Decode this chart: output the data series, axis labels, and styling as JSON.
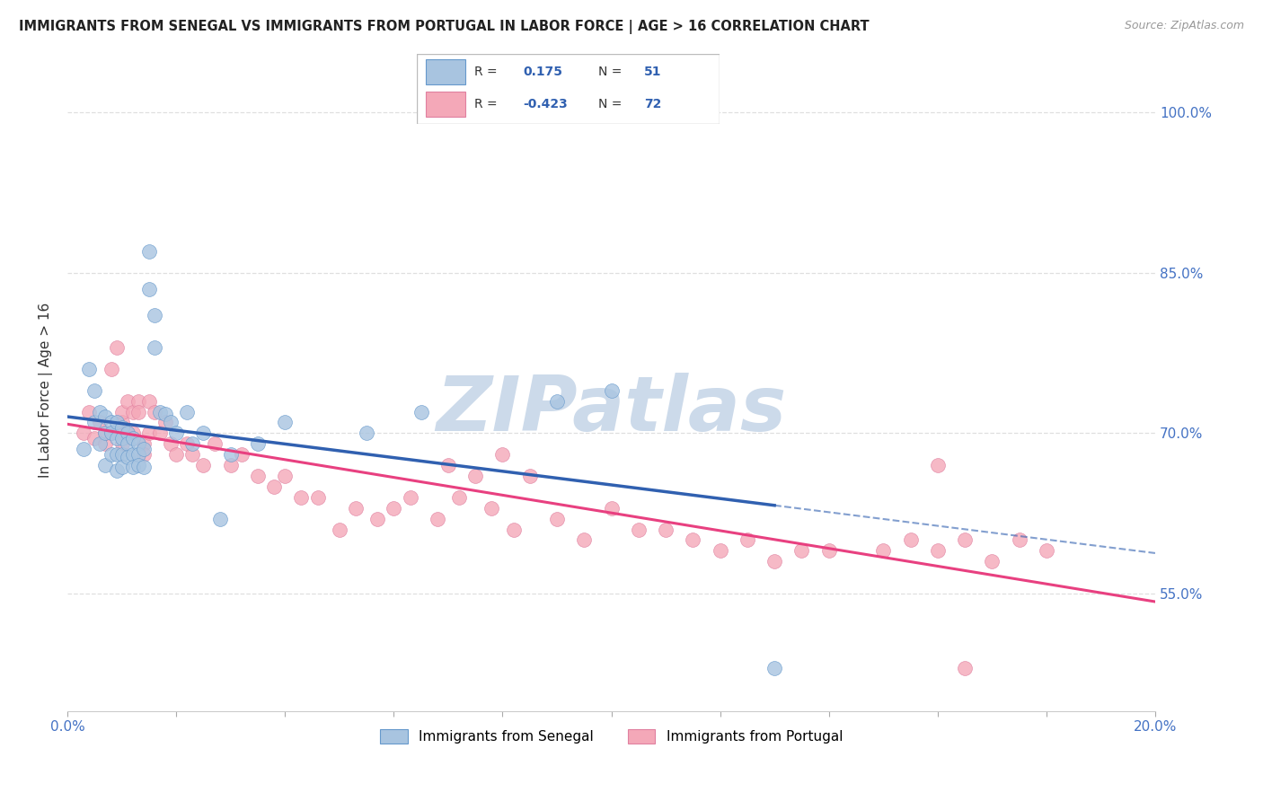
{
  "title": "IMMIGRANTS FROM SENEGAL VS IMMIGRANTS FROM PORTUGAL IN LABOR FORCE | AGE > 16 CORRELATION CHART",
  "source": "Source: ZipAtlas.com",
  "ylabel": "In Labor Force | Age > 16",
  "xlim": [
    0.0,
    0.2
  ],
  "ylim": [
    0.44,
    1.04
  ],
  "ytick_labels": [
    "55.0%",
    "70.0%",
    "85.0%",
    "100.0%"
  ],
  "ytick_values": [
    0.55,
    0.7,
    0.85,
    1.0
  ],
  "xtick_values": [
    0.0,
    0.02,
    0.04,
    0.06,
    0.08,
    0.1,
    0.12,
    0.14,
    0.16,
    0.18,
    0.2
  ],
  "legend_label1": "Immigrants from Senegal",
  "legend_label2": "Immigrants from Portugal",
  "R1": "0.175",
  "N1": "51",
  "R2": "-0.423",
  "N2": "72",
  "senegal_color": "#a8c4e0",
  "portugal_color": "#f4a8b8",
  "senegal_edge_color": "#6699cc",
  "portugal_edge_color": "#e080a0",
  "senegal_line_color": "#3060b0",
  "portugal_line_color": "#e84080",
  "senegal_x": [
    0.003,
    0.004,
    0.005,
    0.005,
    0.006,
    0.006,
    0.007,
    0.007,
    0.007,
    0.008,
    0.008,
    0.008,
    0.009,
    0.009,
    0.009,
    0.009,
    0.01,
    0.01,
    0.01,
    0.01,
    0.011,
    0.011,
    0.011,
    0.012,
    0.012,
    0.012,
    0.013,
    0.013,
    0.013,
    0.014,
    0.014,
    0.015,
    0.015,
    0.016,
    0.016,
    0.017,
    0.018,
    0.019,
    0.02,
    0.022,
    0.023,
    0.025,
    0.028,
    0.03,
    0.035,
    0.04,
    0.055,
    0.065,
    0.09,
    0.1,
    0.13
  ],
  "senegal_y": [
    0.685,
    0.76,
    0.74,
    0.71,
    0.72,
    0.69,
    0.7,
    0.715,
    0.67,
    0.71,
    0.7,
    0.68,
    0.71,
    0.695,
    0.68,
    0.665,
    0.705,
    0.695,
    0.68,
    0.668,
    0.7,
    0.69,
    0.678,
    0.695,
    0.68,
    0.668,
    0.69,
    0.68,
    0.67,
    0.685,
    0.668,
    0.87,
    0.835,
    0.81,
    0.78,
    0.72,
    0.718,
    0.71,
    0.7,
    0.72,
    0.69,
    0.7,
    0.62,
    0.68,
    0.69,
    0.71,
    0.7,
    0.72,
    0.73,
    0.74,
    0.48
  ],
  "portugal_x": [
    0.003,
    0.004,
    0.005,
    0.006,
    0.007,
    0.007,
    0.008,
    0.008,
    0.009,
    0.009,
    0.01,
    0.01,
    0.01,
    0.011,
    0.011,
    0.012,
    0.012,
    0.013,
    0.013,
    0.014,
    0.014,
    0.015,
    0.015,
    0.016,
    0.017,
    0.018,
    0.019,
    0.02,
    0.022,
    0.023,
    0.025,
    0.027,
    0.03,
    0.032,
    0.035,
    0.038,
    0.04,
    0.043,
    0.046,
    0.05,
    0.053,
    0.057,
    0.06,
    0.063,
    0.068,
    0.072,
    0.078,
    0.082,
    0.09,
    0.095,
    0.1,
    0.105,
    0.11,
    0.115,
    0.12,
    0.125,
    0.13,
    0.135,
    0.14,
    0.15,
    0.155,
    0.16,
    0.165,
    0.17,
    0.175,
    0.18,
    0.07,
    0.075,
    0.08,
    0.085,
    0.16,
    0.165
  ],
  "portugal_y": [
    0.7,
    0.72,
    0.695,
    0.71,
    0.69,
    0.7,
    0.76,
    0.7,
    0.78,
    0.7,
    0.71,
    0.72,
    0.69,
    0.73,
    0.7,
    0.72,
    0.7,
    0.73,
    0.72,
    0.69,
    0.68,
    0.73,
    0.7,
    0.72,
    0.7,
    0.71,
    0.69,
    0.68,
    0.69,
    0.68,
    0.67,
    0.69,
    0.67,
    0.68,
    0.66,
    0.65,
    0.66,
    0.64,
    0.64,
    0.61,
    0.63,
    0.62,
    0.63,
    0.64,
    0.62,
    0.64,
    0.63,
    0.61,
    0.62,
    0.6,
    0.63,
    0.61,
    0.61,
    0.6,
    0.59,
    0.6,
    0.58,
    0.59,
    0.59,
    0.59,
    0.6,
    0.59,
    0.6,
    0.58,
    0.6,
    0.59,
    0.67,
    0.66,
    0.68,
    0.66,
    0.67,
    0.48
  ],
  "background_color": "#ffffff",
  "grid_color": "#d8d8d8",
  "watermark_text": "ZIPatlas",
  "watermark_color": "#ccdaea"
}
